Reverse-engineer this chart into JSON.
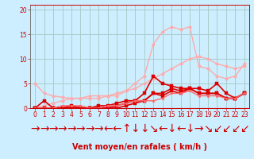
{
  "xlabel": "Vent moyen/en rafales ( km/h )",
  "xlim": [
    -0.5,
    23.5
  ],
  "ylim": [
    0,
    21
  ],
  "yticks": [
    0,
    5,
    10,
    15,
    20
  ],
  "xticks": [
    0,
    1,
    2,
    3,
    4,
    5,
    6,
    7,
    8,
    9,
    10,
    11,
    12,
    13,
    14,
    15,
    16,
    17,
    18,
    19,
    20,
    21,
    22,
    23
  ],
  "bg_color": "#cceeff",
  "grid_color": "#aacccc",
  "lines": [
    {
      "x": [
        0,
        1,
        2,
        3,
        4,
        5,
        6,
        7,
        8,
        9,
        10,
        11,
        12,
        13,
        14,
        15,
        16,
        17,
        18,
        19,
        20,
        21,
        22,
        23
      ],
      "y": [
        5.0,
        3.0,
        2.5,
        2.2,
        2.0,
        2.0,
        2.5,
        2.5,
        2.5,
        2.5,
        3.5,
        5.0,
        6.5,
        13.0,
        15.5,
        16.5,
        16.0,
        16.5,
        8.5,
        8.0,
        6.5,
        6.0,
        6.5,
        9.0
      ],
      "color": "#ffaaaa",
      "lw": 1.0,
      "marker": "o",
      "ms": 2.5
    },
    {
      "x": [
        0,
        1,
        2,
        3,
        4,
        5,
        6,
        7,
        8,
        9,
        10,
        11,
        12,
        13,
        14,
        15,
        16,
        17,
        18,
        19,
        20,
        21,
        22,
        23
      ],
      "y": [
        0,
        0.5,
        1.0,
        1.5,
        2.0,
        2.0,
        2.0,
        2.0,
        2.5,
        3.0,
        3.5,
        4.0,
        5.0,
        6.0,
        7.0,
        8.0,
        9.0,
        10.0,
        10.5,
        10.0,
        9.0,
        8.5,
        8.0,
        8.5
      ],
      "color": "#ffaaaa",
      "lw": 1.0,
      "marker": "o",
      "ms": 2.5
    },
    {
      "x": [
        0,
        1,
        2,
        3,
        4,
        5,
        6,
        7,
        8,
        9,
        10,
        11,
        12,
        13,
        14,
        15,
        16,
        17,
        18,
        19,
        20,
        21,
        22,
        23
      ],
      "y": [
        0,
        0,
        0,
        0,
        0,
        0,
        0,
        0,
        0,
        0.5,
        1.0,
        1.5,
        3.0,
        6.5,
        5.0,
        4.5,
        4.0,
        4.0,
        4.0,
        3.5,
        5.0,
        3.0,
        2.0,
        3.0
      ],
      "color": "#dd0000",
      "lw": 1.2,
      "marker": "s",
      "ms": 2.5
    },
    {
      "x": [
        0,
        1,
        2,
        3,
        4,
        5,
        6,
        7,
        8,
        9,
        10,
        11,
        12,
        13,
        14,
        15,
        16,
        17,
        18,
        19,
        20,
        21,
        22,
        23
      ],
      "y": [
        0,
        1.5,
        0,
        0,
        0.5,
        0,
        0,
        0.5,
        0.5,
        1.0,
        1.5,
        1.5,
        1.5,
        3.0,
        3.0,
        4.0,
        3.5,
        4.0,
        3.0,
        3.0,
        3.0,
        2.0,
        2.0,
        3.0
      ],
      "color": "#dd0000",
      "lw": 1.2,
      "marker": "s",
      "ms": 2.5
    },
    {
      "x": [
        0,
        1,
        2,
        3,
        4,
        5,
        6,
        7,
        8,
        9,
        10,
        11,
        12,
        13,
        14,
        15,
        16,
        17,
        18,
        19,
        20,
        21,
        22,
        23
      ],
      "y": [
        0,
        0,
        0,
        0,
        0,
        0,
        0,
        0,
        0,
        0,
        0.5,
        1.0,
        1.5,
        3.0,
        2.5,
        3.5,
        3.0,
        4.0,
        3.0,
        3.0,
        3.0,
        2.0,
        2.0,
        3.0
      ],
      "color": "#dd0000",
      "lw": 1.2,
      "marker": "s",
      "ms": 2.5
    },
    {
      "x": [
        0,
        1,
        2,
        3,
        4,
        5,
        6,
        7,
        8,
        9,
        10,
        11,
        12,
        13,
        14,
        15,
        16,
        17,
        18,
        19,
        20,
        21,
        22,
        23
      ],
      "y": [
        0,
        0,
        0,
        0.5,
        0.5,
        0.5,
        0,
        0,
        0.5,
        0.5,
        1.0,
        1.5,
        1.5,
        1.5,
        2.0,
        3.0,
        3.0,
        3.5,
        2.5,
        2.5,
        2.5,
        2.0,
        2.0,
        3.0
      ],
      "color": "#ff6666",
      "lw": 1.0,
      "marker": "o",
      "ms": 2.0
    }
  ],
  "font_color": "#cc0000",
  "tick_fontsize": 5.5,
  "label_fontsize": 7,
  "arrow_symbols": [
    "→",
    "→",
    "→",
    "→",
    "→",
    "→",
    "→",
    "→",
    "←",
    "←",
    "↑",
    "↓",
    "↓",
    "↘",
    "←",
    "↓",
    "←",
    "↓",
    "→",
    "↘",
    "↙",
    "↙",
    "↙",
    "↙"
  ]
}
